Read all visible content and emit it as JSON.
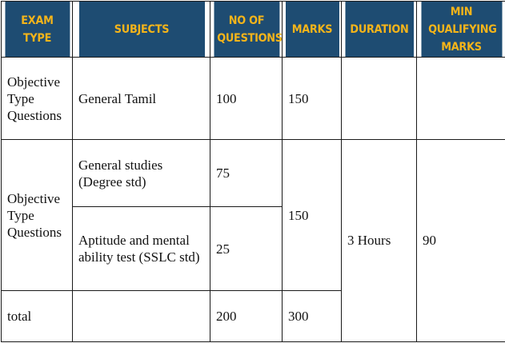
{
  "headers": {
    "exam_type": "EXAM TYPE",
    "subjects": "SUBJECTS",
    "no_of_questions": "NO OF QUESTIONS",
    "marks": "MARKS",
    "duration": "DURATION",
    "min_qualifying_marks": "MIN QUALIFYING MARKS"
  },
  "rows": {
    "paper1": {
      "exam_type": "Objective Type Questions",
      "subject": "General Tamil",
      "questions": "100",
      "marks": "150"
    },
    "paper2": {
      "exam_type": "Objective Type Questions",
      "marks": "150",
      "duration": "3 Hours",
      "min_marks": "90",
      "subjects": [
        {
          "subject": "General studies (Degree std)",
          "questions": "75"
        },
        {
          "subject": "Aptitude and mental ability test (SSLC std)",
          "questions": "25"
        }
      ]
    },
    "total": {
      "label": "total",
      "questions": "200",
      "marks": "300"
    }
  },
  "colors": {
    "header_bg": "#1e4c72",
    "header_text": "#f4b41a",
    "border": "#1a1a1a"
  }
}
